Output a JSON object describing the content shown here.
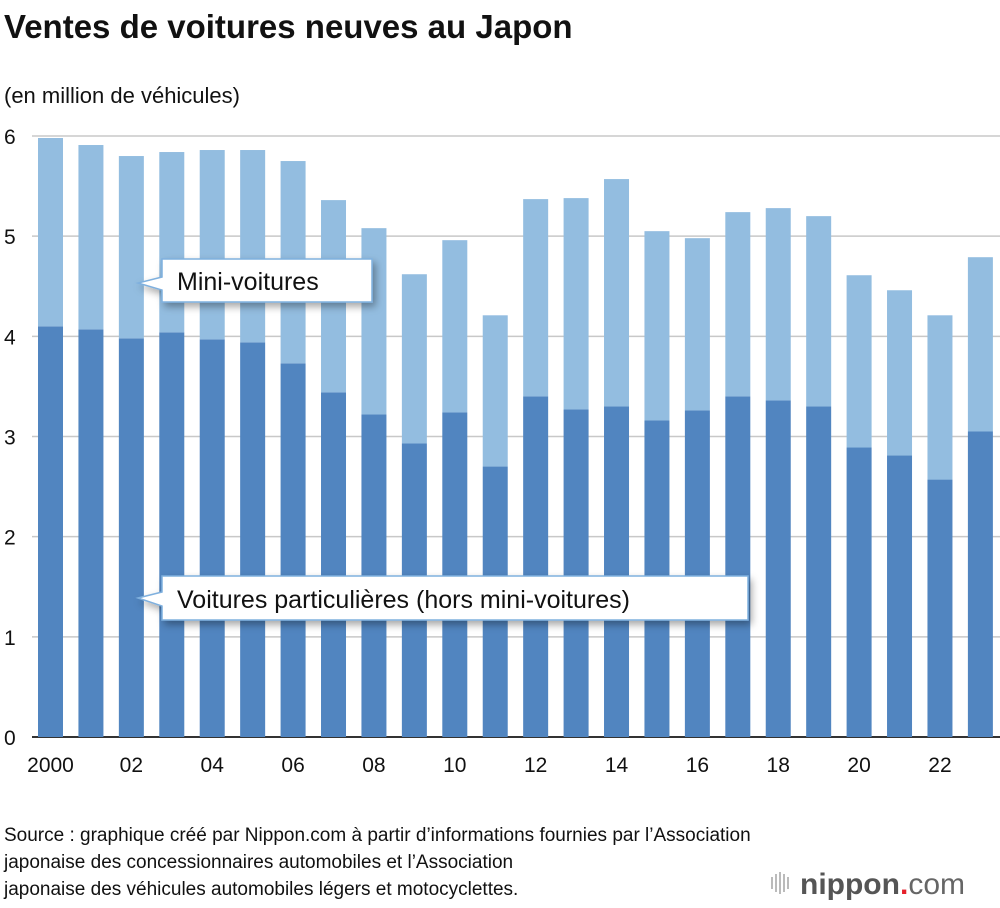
{
  "chart_data": {
    "type": "bar",
    "stacked": true,
    "title": "Ventes de voitures neuves au Japon",
    "ylabel": "(en million de véhicules)",
    "xlabel": "",
    "ylim": [
      0,
      6
    ],
    "yticks": [
      "0",
      "1",
      "2",
      "3",
      "4",
      "5",
      "6"
    ],
    "grid": true,
    "categories": [
      "2000",
      "2001",
      "2002",
      "2003",
      "2004",
      "2005",
      "2006",
      "2007",
      "2008",
      "2009",
      "2010",
      "2011",
      "2012",
      "2013",
      "2014",
      "2015",
      "2016",
      "2017",
      "2018",
      "2019",
      "2020",
      "2021",
      "2022",
      "2023"
    ],
    "xtick_labels": [
      "2000",
      "",
      "02",
      "",
      "04",
      "",
      "06",
      "",
      "08",
      "",
      "10",
      "",
      "12",
      "",
      "14",
      "",
      "16",
      "",
      "18",
      "",
      "20",
      "",
      "22",
      ""
    ],
    "series": [
      {
        "name": "Voitures particulières (hors mini-voitures)",
        "color": "#5185c0",
        "values": [
          4.1,
          4.07,
          3.98,
          4.04,
          3.97,
          3.94,
          3.73,
          3.44,
          3.22,
          2.93,
          3.24,
          2.7,
          3.4,
          3.27,
          3.3,
          3.16,
          3.26,
          3.4,
          3.36,
          3.3,
          2.89,
          2.81,
          2.57,
          3.05
        ]
      },
      {
        "name": "Mini-voitures",
        "color": "#93bde0",
        "values": [
          1.88,
          1.84,
          1.82,
          1.8,
          1.89,
          1.92,
          2.02,
          1.92,
          1.86,
          1.69,
          1.72,
          1.51,
          1.97,
          2.11,
          2.27,
          1.89,
          1.72,
          1.84,
          1.92,
          1.9,
          1.72,
          1.65,
          1.64,
          1.74
        ]
      }
    ]
  },
  "source": [
    "Source : graphique créé par Nippon.com à partir d’informations fournies par l’Association",
    "japonaise des concessionnaires automobiles et l’Association",
    "japonaise des véhicules automobiles légers et motocyclettes."
  ],
  "logo": {
    "main": "nippon",
    "dot": ".",
    "suffix": "com"
  }
}
